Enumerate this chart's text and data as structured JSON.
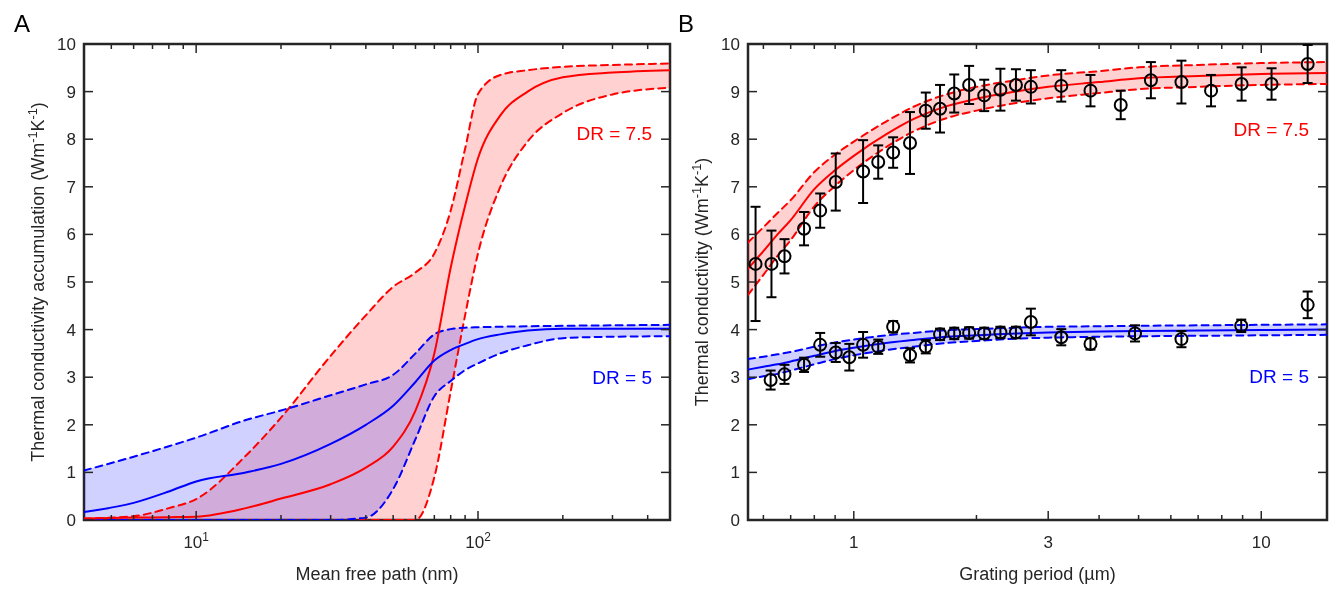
{
  "chart_data": [
    {
      "type": "line",
      "title": "A",
      "xlabel": "Mean free path (nm)",
      "ylabel": "Thermal conductivity accumulation (Wm$^{-1}$K$^{-1}$)",
      "log": "x",
      "xlim": [
        4,
        480
      ],
      "ylim": [
        0,
        10
      ],
      "xticks": [
        {
          "value": 5,
          "label": null
        },
        {
          "value": 6,
          "label": null
        },
        {
          "value": 7,
          "label": null
        },
        {
          "value": 8,
          "label": null
        },
        {
          "value": 9,
          "label": null
        },
        {
          "value": 10,
          "label": "10$^{1}$"
        },
        {
          "value": 20,
          "label": null
        },
        {
          "value": 30,
          "label": null
        },
        {
          "value": 40,
          "label": null
        },
        {
          "value": 50,
          "label": null
        },
        {
          "value": 60,
          "label": null
        },
        {
          "value": 70,
          "label": null
        },
        {
          "value": 80,
          "label": null
        },
        {
          "value": 90,
          "label": null
        },
        {
          "value": 100,
          "label": "10$^{2}$"
        },
        {
          "value": 200,
          "label": null
        },
        {
          "value": 300,
          "label": null
        },
        {
          "value": 400,
          "label": null
        }
      ],
      "yticks": [
        0,
        1,
        2,
        3,
        4,
        5,
        6,
        7,
        8,
        9,
        10
      ],
      "x": [
        4,
        6,
        8,
        10,
        15,
        20,
        30,
        40,
        50,
        60,
        70,
        80,
        90,
        100,
        120,
        150,
        200,
        300,
        480
      ],
      "series": [
        {
          "name": "DR = 7.5",
          "color": "#ff0000",
          "line_style": "solid",
          "values": [
            0.03,
            0.05,
            0.06,
            0.07,
            0.25,
            0.45,
            0.75,
            1.1,
            1.54,
            2.3,
            3.5,
            5.3,
            6.6,
            7.6,
            8.5,
            9.0,
            9.3,
            9.4,
            9.45
          ],
          "upper": [
            0.03,
            0.08,
            0.25,
            0.44,
            1.35,
            2.15,
            3.45,
            4.3,
            4.9,
            5.2,
            5.6,
            6.5,
            7.8,
            8.95,
            9.35,
            9.45,
            9.52,
            9.56,
            9.59
          ],
          "lower": [
            0,
            0,
            0,
            0,
            0,
            0,
            0,
            0,
            0,
            0,
            0.9,
            2.7,
            4.3,
            5.6,
            7.0,
            7.95,
            8.55,
            8.94,
            9.08
          ]
        },
        {
          "name": "DR = 5",
          "color": "#0000ff",
          "line_style": "solid",
          "values": [
            0.17,
            0.36,
            0.6,
            0.81,
            1.0,
            1.18,
            1.6,
            2.0,
            2.4,
            2.9,
            3.35,
            3.57,
            3.7,
            3.8,
            3.9,
            3.98,
            4.02,
            4.02,
            4.02
          ],
          "upper": [
            1.04,
            1.33,
            1.55,
            1.73,
            2.1,
            2.3,
            2.62,
            2.85,
            3.05,
            3.5,
            3.9,
            4.01,
            4.04,
            4.05,
            4.06,
            4.07,
            4.08,
            4.09,
            4.1
          ],
          "lower": [
            0,
            0,
            0,
            0,
            0,
            0,
            0,
            0.05,
            0.65,
            1.7,
            2.6,
            2.92,
            3.15,
            3.29,
            3.5,
            3.67,
            3.82,
            3.85,
            3.86
          ]
        },
        {
          "color": "#ff0000",
          "line_style": "dashed",
          "values": [
            0.03,
            0.08,
            0.25,
            0.44,
            1.35,
            2.15,
            3.45,
            4.3,
            4.9,
            5.2,
            5.6,
            6.5,
            7.8,
            8.95,
            9.35,
            9.45,
            9.52,
            9.56,
            9.59
          ]
        },
        {
          "color": "#ff0000",
          "line_style": "dashed",
          "values": [
            0,
            0,
            0,
            0,
            0,
            0,
            0,
            0,
            0,
            0,
            0.9,
            2.7,
            4.3,
            5.6,
            7.0,
            7.95,
            8.55,
            8.94,
            9.08
          ]
        },
        {
          "color": "#0000ff",
          "line_style": "dashed",
          "values": [
            1.04,
            1.33,
            1.55,
            1.73,
            2.1,
            2.3,
            2.62,
            2.85,
            3.05,
            3.5,
            3.9,
            4.01,
            4.04,
            4.05,
            4.06,
            4.07,
            4.08,
            4.09,
            4.1
          ]
        },
        {
          "color": "#0000ff",
          "line_style": "dashed",
          "values": [
            0,
            0,
            0,
            0,
            0,
            0,
            0,
            0.05,
            0.65,
            1.7,
            2.6,
            2.92,
            3.15,
            3.29,
            3.5,
            3.67,
            3.82,
            3.85,
            3.86
          ]
        }
      ]
    },
    {
      "type": "line",
      "title": "B",
      "xlabel": "Grating period (µm)",
      "ylabel": "Thermal conductivity (Wm$^{-1}$K$^{-1}$)",
      "log": "x",
      "xlim": [
        0.55,
        14.5
      ],
      "ylim": [
        0,
        10
      ],
      "xticks": [
        {
          "value": 0.6,
          "label": null
        },
        {
          "value": 0.7,
          "label": null
        },
        {
          "value": 0.8,
          "label": null
        },
        {
          "value": 0.9,
          "label": null
        },
        1,
        {
          "value": 2,
          "label": null
        },
        3,
        {
          "value": 4,
          "label": null
        },
        {
          "value": 5,
          "label": null
        },
        {
          "value": 6,
          "label": null
        },
        {
          "value": 7,
          "label": null
        },
        {
          "value": 8,
          "label": null
        },
        {
          "value": 9,
          "label": null
        },
        10
      ],
      "yticks": [
        0,
        1,
        2,
        3,
        4,
        5,
        6,
        7,
        8,
        9,
        10
      ],
      "x": [
        0.55,
        0.6,
        0.65,
        0.7,
        0.8,
        0.9,
        1,
        1.2,
        1.4,
        1.7,
        2,
        2.5,
        3,
        4,
        5,
        7,
        10,
        14.5
      ],
      "series": [
        {
          "name": "DR = 7.5",
          "color": "#ff0000",
          "line_style": "solid",
          "values": [
            5.28,
            5.65,
            6.0,
            6.3,
            6.95,
            7.35,
            7.65,
            8.1,
            8.42,
            8.7,
            8.85,
            9.0,
            9.1,
            9.2,
            9.28,
            9.33,
            9.37,
            9.39
          ],
          "upper": [
            5.83,
            6.15,
            6.45,
            6.72,
            7.31,
            7.68,
            7.95,
            8.37,
            8.68,
            8.95,
            9.1,
            9.24,
            9.34,
            9.43,
            9.51,
            9.56,
            9.6,
            9.62
          ],
          "lower": [
            4.73,
            5.15,
            5.55,
            5.88,
            6.59,
            7.02,
            7.35,
            7.83,
            8.16,
            8.45,
            8.6,
            8.76,
            8.86,
            8.97,
            9.05,
            9.1,
            9.14,
            9.16
          ]
        },
        {
          "name": "DR = 5",
          "color": "#0000ff",
          "line_style": "solid",
          "values": [
            3.16,
            3.22,
            3.27,
            3.33,
            3.45,
            3.55,
            3.62,
            3.72,
            3.78,
            3.85,
            3.88,
            3.92,
            3.94,
            3.96,
            3.97,
            3.98,
            3.99,
            4.0
          ],
          "upper": [
            3.38,
            3.43,
            3.48,
            3.53,
            3.64,
            3.73,
            3.79,
            3.88,
            3.93,
            3.99,
            4.01,
            4.04,
            4.06,
            4.07,
            4.08,
            4.09,
            4.1,
            4.11
          ],
          "lower": [
            2.96,
            3.02,
            3.07,
            3.14,
            3.27,
            3.38,
            3.46,
            3.57,
            3.64,
            3.72,
            3.76,
            3.81,
            3.83,
            3.85,
            3.86,
            3.87,
            3.88,
            3.89
          ]
        },
        {
          "color": "#ff0000",
          "line_style": "dashed",
          "values": [
            5.83,
            6.15,
            6.45,
            6.72,
            7.31,
            7.68,
            7.95,
            8.37,
            8.68,
            8.95,
            9.1,
            9.24,
            9.34,
            9.43,
            9.51,
            9.56,
            9.6,
            9.62
          ]
        },
        {
          "color": "#ff0000",
          "line_style": "dashed",
          "values": [
            4.73,
            5.15,
            5.55,
            5.88,
            6.59,
            7.02,
            7.35,
            7.83,
            8.16,
            8.45,
            8.6,
            8.76,
            8.86,
            8.97,
            9.05,
            9.1,
            9.14,
            9.16
          ]
        },
        {
          "color": "#0000ff",
          "line_style": "dashed",
          "values": [
            3.38,
            3.43,
            3.48,
            3.53,
            3.64,
            3.73,
            3.79,
            3.88,
            3.93,
            3.99,
            4.01,
            4.04,
            4.06,
            4.07,
            4.08,
            4.09,
            4.1,
            4.11
          ]
        },
        {
          "color": "#0000ff",
          "line_style": "dashed",
          "values": [
            2.96,
            3.02,
            3.07,
            3.14,
            3.27,
            3.38,
            3.46,
            3.57,
            3.64,
            3.72,
            3.76,
            3.81,
            3.83,
            3.85,
            3.86,
            3.87,
            3.88,
            3.89
          ]
        },
        {
          "type": "scatter",
          "marker": "circle",
          "color": "#000000",
          "x": [
            0.574,
            0.628,
            0.676,
            0.755,
            0.827,
            0.903,
            1.054,
            1.148,
            1.249,
            1.374,
            1.502,
            1.628,
            1.764,
            1.919,
            2.09,
            2.29,
            2.5,
            2.72,
            3.23,
            3.81,
            4.52,
            5.36,
            6.37,
            7.53,
            8.95,
            10.6,
            13.0
          ],
          "values": [
            5.38,
            5.38,
            5.54,
            6.12,
            6.5,
            7.1,
            7.32,
            7.52,
            7.72,
            7.92,
            8.6,
            8.64,
            8.96,
            9.14,
            8.92,
            9.04,
            9.14,
            9.1,
            9.12,
            9.02,
            8.72,
            9.24,
            9.2,
            9.02,
            9.16,
            9.16,
            9.58
          ],
          "errors": [
            1.2,
            0.7,
            0.36,
            0.35,
            0.36,
            0.6,
            0.66,
            0.35,
            0.32,
            0.65,
            0.38,
            0.5,
            0.4,
            0.4,
            0.33,
            0.44,
            0.33,
            0.35,
            0.33,
            0.33,
            0.3,
            0.38,
            0.45,
            0.33,
            0.35,
            0.33,
            0.4
          ]
        },
        {
          "type": "scatter",
          "marker": "circle",
          "color": "#000000",
          "x": [
            0.625,
            0.676,
            0.755,
            0.827,
            0.903,
            0.975,
            1.054,
            1.148,
            1.249,
            1.374,
            1.502,
            1.628,
            1.764,
            1.919,
            2.09,
            2.29,
            2.5,
            2.72,
            3.23,
            3.81,
            4.9,
            6.37,
            8.93,
            13.0
          ],
          "values": [
            2.94,
            3.06,
            3.26,
            3.68,
            3.52,
            3.42,
            3.68,
            3.64,
            4.06,
            3.46,
            3.64,
            3.9,
            3.92,
            3.93,
            3.92,
            3.94,
            3.94,
            4.16,
            3.84,
            3.7,
            3.92,
            3.8,
            4.08,
            4.52
          ],
          "errors": [
            0.2,
            0.2,
            0.15,
            0.25,
            0.2,
            0.28,
            0.27,
            0.15,
            0.12,
            0.15,
            0.14,
            0.12,
            0.12,
            0.12,
            0.12,
            0.12,
            0.12,
            0.28,
            0.17,
            0.12,
            0.17,
            0.17,
            0.13,
            0.28
          ]
        }
      ]
    }
  ]
}
